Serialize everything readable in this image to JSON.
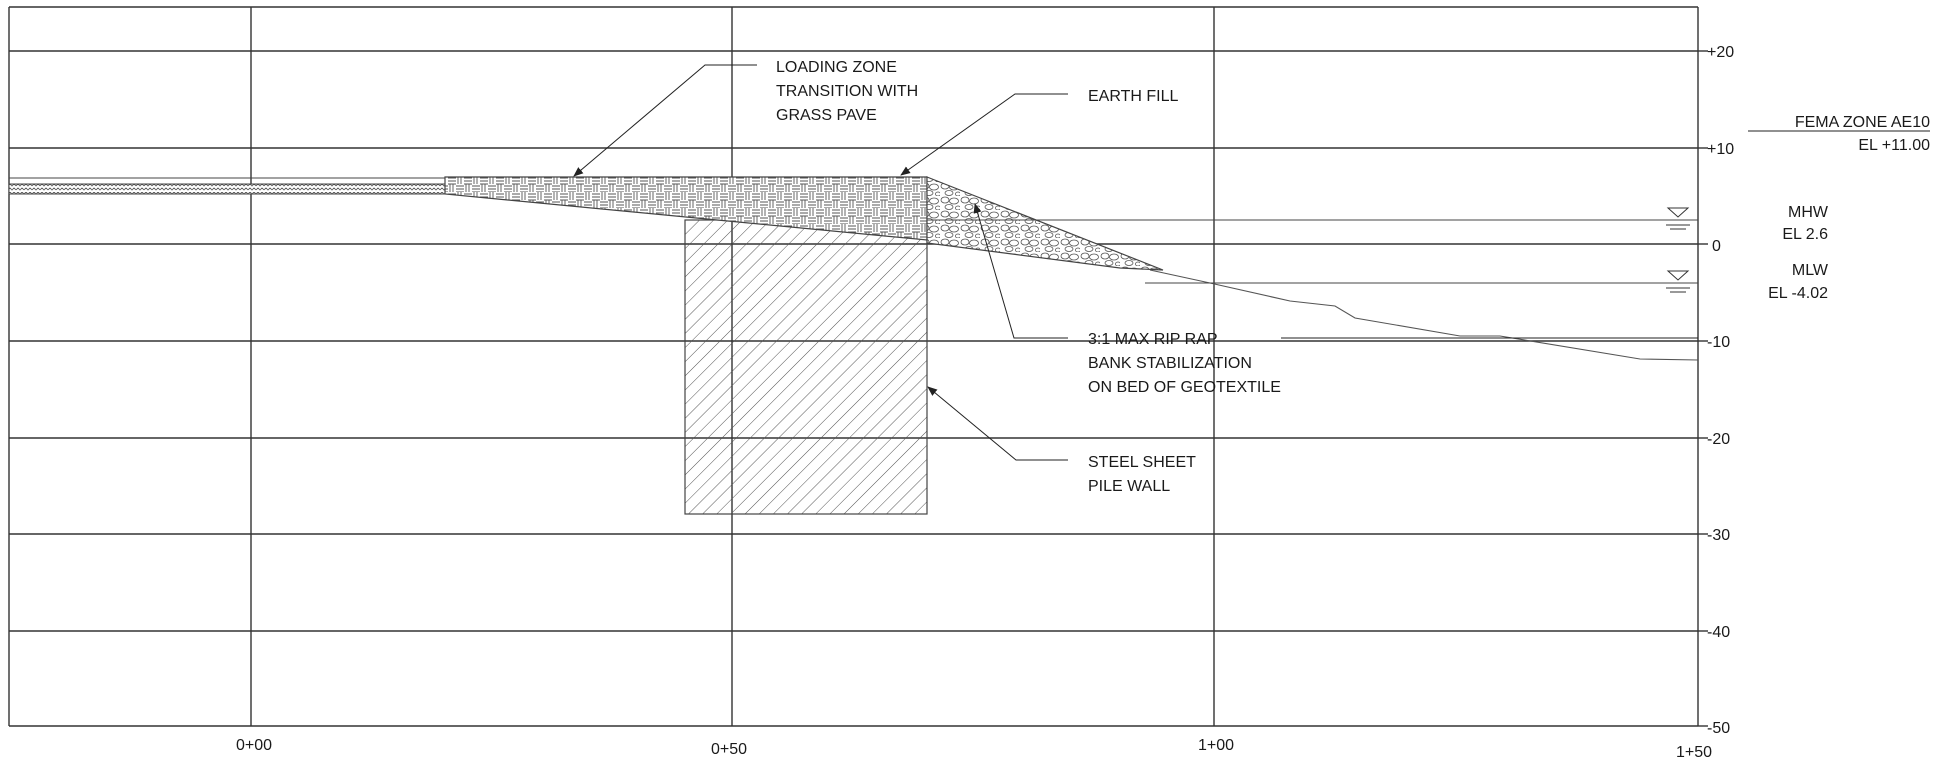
{
  "sheet": {
    "y_axis_labels": [
      "+20",
      "+10",
      "0",
      "-10",
      "-20",
      "-30",
      "-40",
      "-50"
    ],
    "x_axis_labels": [
      "0+00",
      "0+50",
      "1+00",
      "1+50"
    ]
  },
  "callouts": {
    "loading_zone": [
      "LOADING ZONE",
      "TRANSITION WITH",
      "GRASS PAVE"
    ],
    "earth_fill": "EARTH FILL",
    "rip_rap": [
      "3:1 MAX RIP RAP",
      "BANK STABILIZATION",
      "ON BED OF GEOTEXTILE"
    ],
    "sheet_pile": [
      "STEEL SHEET",
      "PILE WALL"
    ]
  },
  "elevations": {
    "fema_zone": "FEMA ZONE AE10",
    "fema_el": "EL +11.00",
    "mhw": "MHW",
    "mhw_el": "EL 2.6",
    "mlw": "MLW",
    "mlw_el": "EL -4.02"
  },
  "colors": {
    "line": "#333333",
    "hatch": "#444444"
  }
}
